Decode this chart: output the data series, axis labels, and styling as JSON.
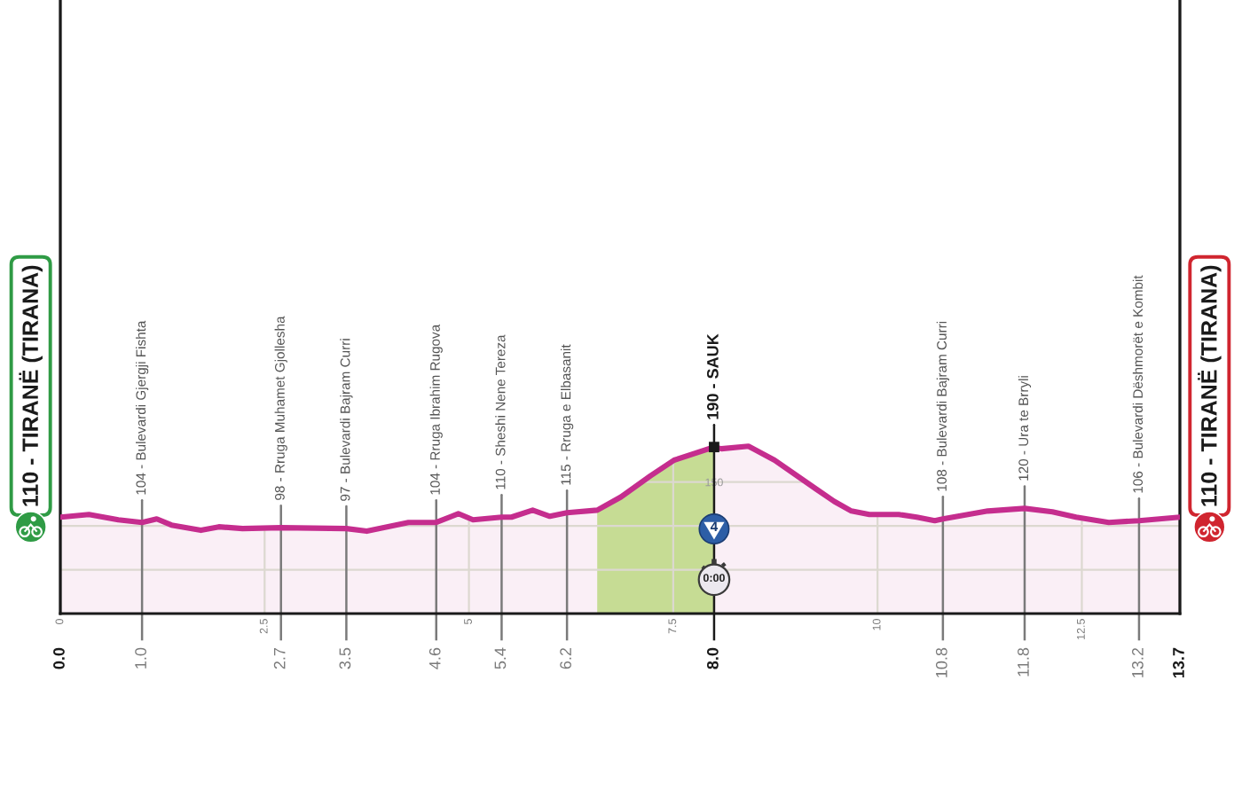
{
  "chart_data": {
    "type": "area",
    "xlim": [
      0,
      13.7
    ],
    "ylim": [
      0,
      700
    ],
    "xticks": [
      0,
      2.5,
      5,
      7.5,
      10,
      12.5
    ],
    "yticks": [
      {
        "value": 0,
        "label": null
      },
      {
        "value": 50,
        "label": null
      },
      100,
      150
    ],
    "grid": true,
    "series": [
      {
        "color": "#c52d8e",
        "x": [
          0,
          0.35,
          0.71,
          1.0,
          1.18,
          1.36,
          1.72,
          1.94,
          2.23,
          2.7,
          3.5,
          3.75,
          4.26,
          4.6,
          4.87,
          5.05,
          5.4,
          5.52,
          5.78,
          5.99,
          6.2,
          6.57,
          6.86,
          7.22,
          7.51,
          8.0,
          8.09,
          8.42,
          8.74,
          9.25,
          9.47,
          9.68,
          9.9,
          10.12,
          10.26,
          10.48,
          10.7,
          10.8,
          11.35,
          11.8,
          12.14,
          12.43,
          12.83,
          13.2,
          13.7
        ],
        "values": [
          110,
          113,
          107,
          104,
          108,
          101,
          95,
          99,
          97,
          98,
          97,
          94,
          104,
          104,
          114,
          107,
          110,
          110,
          118,
          111,
          115,
          118,
          133,
          157,
          175,
          190,
          188,
          191,
          175,
          142,
          128,
          117,
          113,
          113,
          113,
          110,
          106,
          108,
          117,
          120,
          116,
          110,
          104,
          106,
          110
        ]
      },
      {
        "color": "#c6dc94",
        "x": [
          6.57,
          6.86,
          7.22,
          7.51,
          8.0
        ],
        "values": [
          118,
          133,
          157,
          175,
          190
        ]
      },
      {
        "type": "scatter",
        "color": "#1a1a1a",
        "marker": "square",
        "x": [
          8.0
        ],
        "values": [
          190
        ]
      }
    ],
    "ref_lines": [
      {
        "axis": "x",
        "value": 0.0,
        "label": "0.0",
        "color": "#1a1a1a"
      },
      {
        "axis": "x",
        "value": 1.0,
        "label": "1.0",
        "color": "#7a7a7a"
      },
      {
        "axis": "x",
        "value": 2.7,
        "label": "2.7",
        "color": "#7a7a7a"
      },
      {
        "axis": "x",
        "value": 3.5,
        "label": "3.5",
        "color": "#7a7a7a"
      },
      {
        "axis": "x",
        "value": 4.6,
        "label": "4.6",
        "color": "#7a7a7a"
      },
      {
        "axis": "x",
        "value": 5.4,
        "label": "5.4",
        "color": "#7a7a7a"
      },
      {
        "axis": "x",
        "value": 6.2,
        "label": "6.2",
        "color": "#7a7a7a"
      },
      {
        "axis": "x",
        "value": 8.0,
        "label": "8.0",
        "color": "#1a1a1a"
      },
      {
        "axis": "x",
        "value": 10.8,
        "label": "10.8",
        "color": "#7a7a7a"
      },
      {
        "axis": "x",
        "value": 11.8,
        "label": "11.8",
        "color": "#7a7a7a"
      },
      {
        "axis": "x",
        "value": 13.2,
        "label": "13.2",
        "color": "#7a7a7a"
      },
      {
        "axis": "x",
        "value": 13.7,
        "label": "13.7",
        "color": "#1a1a1a"
      }
    ],
    "annotations": [
      {
        "text": "110 - TIRANË (TIRANA)",
        "x": 0,
        "y": 110
      },
      {
        "text": "104 - Bulevardi Gjergji Fishta",
        "x": 1.0,
        "y": 104
      },
      {
        "text": "98 - Rruga Muhamet Gjollesha",
        "x": 2.7,
        "y": 98
      },
      {
        "text": "97 - Bulevardi Bajram Curri",
        "x": 3.5,
        "y": 97
      },
      {
        "text": "104 - Rruga Ibrahim Rugova",
        "x": 4.6,
        "y": 104
      },
      {
        "text": "110 - Sheshi Nene Tereza",
        "x": 5.4,
        "y": 110
      },
      {
        "text": "115 - Rruga e Elbasanit",
        "x": 6.2,
        "y": 115
      },
      {
        "text": "190 - SAUK",
        "x": 8.0,
        "y": 190
      },
      "4",
      "0:00",
      {
        "text": "108 - Bulevardi Bajram Curri",
        "x": 10.8,
        "y": 108
      },
      {
        "text": "120 - Ura te Brryli",
        "x": 11.8,
        "y": 120
      },
      {
        "text": "106 - Bulevardi Dëshmorët e Kombit",
        "x": 13.2,
        "y": 106
      },
      {
        "text": "110 - TIRANË (TIRANA)",
        "x": 13.7,
        "y": 110
      }
    ]
  }
}
